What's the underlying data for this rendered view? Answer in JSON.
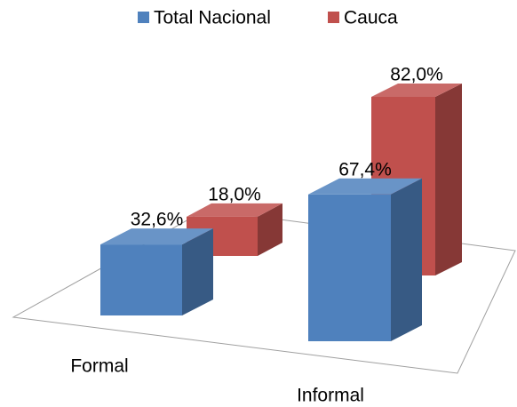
{
  "chart_data": {
    "type": "bar3d",
    "categories": [
      "Formal",
      "Informal"
    ],
    "series": [
      {
        "name": "Total Nacional",
        "color": "#4f81bd",
        "values": [
          32.6,
          67.4
        ],
        "value_labels": [
          "32,6%",
          "67,4%"
        ]
      },
      {
        "name": "Cauca",
        "color": "#c0504d",
        "values": [
          18.0,
          82.0
        ],
        "value_labels": [
          "18,0%",
          "82,0%"
        ]
      }
    ]
  }
}
